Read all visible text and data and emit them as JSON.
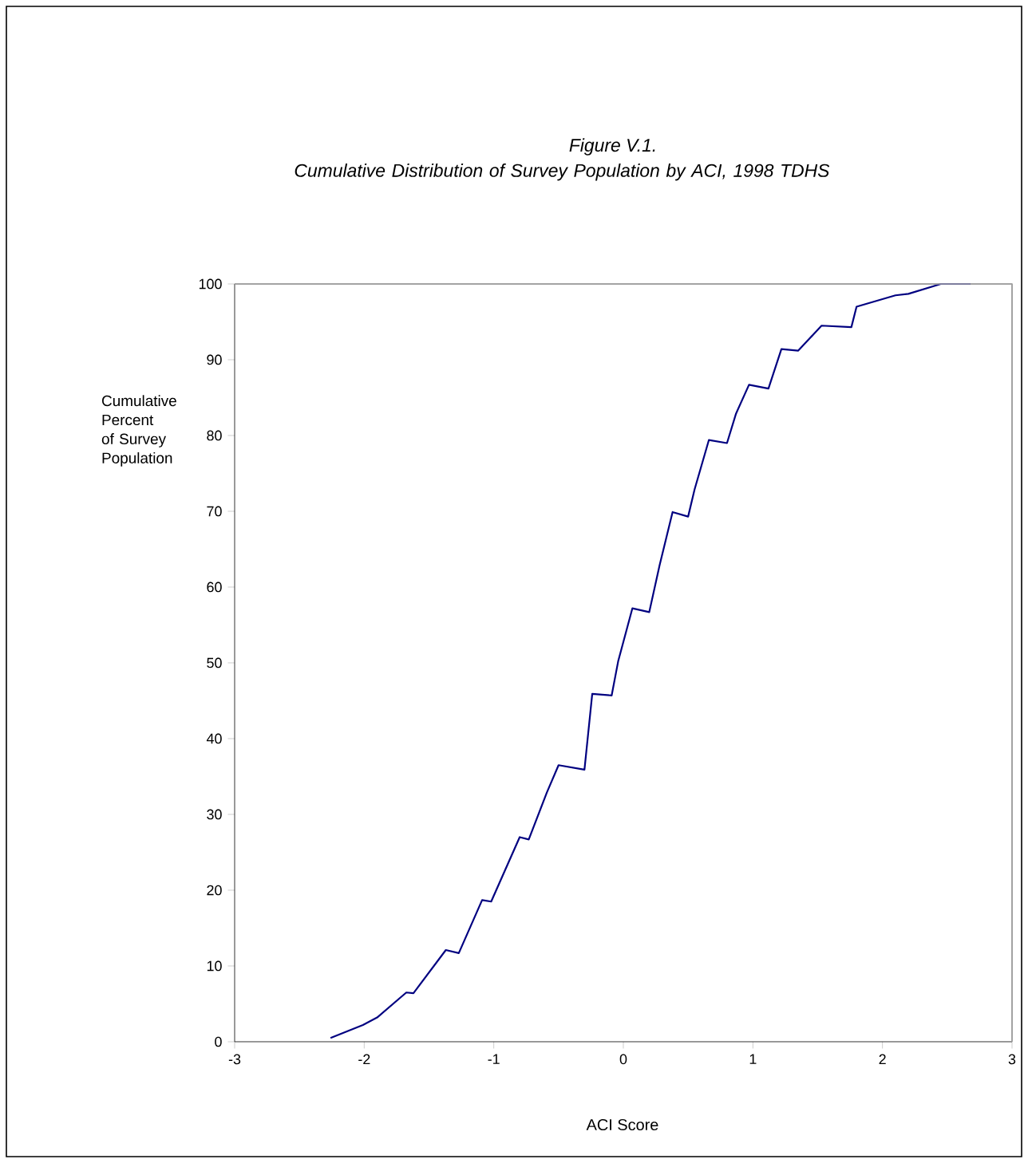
{
  "chart_data": {
    "type": "line",
    "title": "Figure V.1.",
    "subtitle": "Cumulative Distribution of Survey Population by ACI, 1998 TDHS",
    "xlabel": "ACI Score",
    "ylabel": "Cumulative Percent of Survey Population",
    "xlim": [
      -3,
      3
    ],
    "ylim": [
      0,
      100
    ],
    "xticks": [
      -3,
      -2,
      -1,
      0,
      1,
      2,
      3
    ],
    "yticks": [
      0,
      10,
      20,
      30,
      40,
      50,
      60,
      70,
      80,
      90,
      100
    ],
    "grid": false,
    "marker": "none",
    "line_style": "solid",
    "series": [
      {
        "color": "#000080",
        "x": [
          -2.26,
          -2.01,
          -1.9,
          -1.675,
          -1.62,
          -1.37,
          -1.27,
          -1.09,
          -1.02,
          -0.8,
          -0.73,
          -0.59,
          -0.5,
          -0.3,
          -0.24,
          -0.09,
          -0.04,
          0.07,
          0.2,
          0.28,
          0.38,
          0.5,
          0.55,
          0.66,
          0.8,
          0.87,
          0.97,
          1.12,
          1.22,
          1.35,
          1.53,
          1.76,
          1.8,
          2.1,
          2.2,
          2.45,
          2.68
        ],
        "values": [
          0.5,
          2.2,
          3.2,
          6.5,
          6.4,
          12.1,
          11.7,
          18.7,
          18.5,
          27,
          26.7,
          32.9,
          36.5,
          35.9,
          45.9,
          45.7,
          50.2,
          57.2,
          56.7,
          62.9,
          69.9,
          69.3,
          72.9,
          79.4,
          79,
          82.9,
          86.7,
          86.2,
          91.4,
          91.2,
          94.5,
          94.3,
          97,
          98.5,
          98.7,
          100,
          100
        ]
      }
    ]
  }
}
